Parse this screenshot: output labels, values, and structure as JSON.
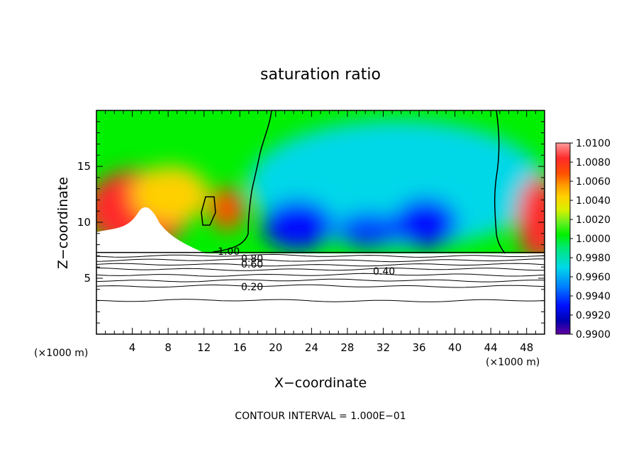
{
  "chart_data": {
    "type": "heatmap",
    "title": "saturation ratio",
    "xlabel": "X−coordinate",
    "ylabel": "Z−coordinate",
    "x_unit": "(×1000 m)",
    "xlim": [
      0,
      50
    ],
    "ylim": [
      0,
      20
    ],
    "x_ticks": [
      4,
      8,
      12,
      16,
      20,
      24,
      28,
      32,
      36,
      40,
      44,
      48
    ],
    "y_ticks": [
      5,
      10,
      15
    ],
    "contour_interval_text": "CONTOUR INTERVAL = 1.000E−01",
    "contour_labels": [
      {
        "text": "1.00",
        "x": 14.5,
        "z": 7.6
      },
      {
        "text": "0.80",
        "x": 17.6,
        "z": 6.9
      },
      {
        "text": "0.60",
        "x": 17.6,
        "z": 6.3
      },
      {
        "text": "0.40",
        "x": 32.5,
        "z": 5.5
      },
      {
        "text": "0.20",
        "x": 17.6,
        "z": 4.3
      }
    ],
    "colorbar": {
      "min": 0.99,
      "max": 1.01,
      "levels": [
        "1.0100",
        "1.0080",
        "1.0060",
        "1.0040",
        "1.0020",
        "1.0000",
        "0.9980",
        "0.9960",
        "0.9940",
        "0.9920",
        "0.9900"
      ],
      "colors": [
        "#ff9a9a",
        "#ff2a2a",
        "#ff5000",
        "#ff9a00",
        "#ffd000",
        "#d8f000",
        "#6ff01a",
        "#00f000",
        "#00e878",
        "#00e8d0",
        "#00b4ff",
        "#0060ff",
        "#0010ff",
        "#0000b0",
        "#6000a0"
      ]
    },
    "cloud_top_z": 7.3,
    "isoline_z_below": [
      7.0,
      6.6,
      6.2,
      5.8,
      5.3,
      4.8,
      4.3,
      3.0
    ]
  }
}
